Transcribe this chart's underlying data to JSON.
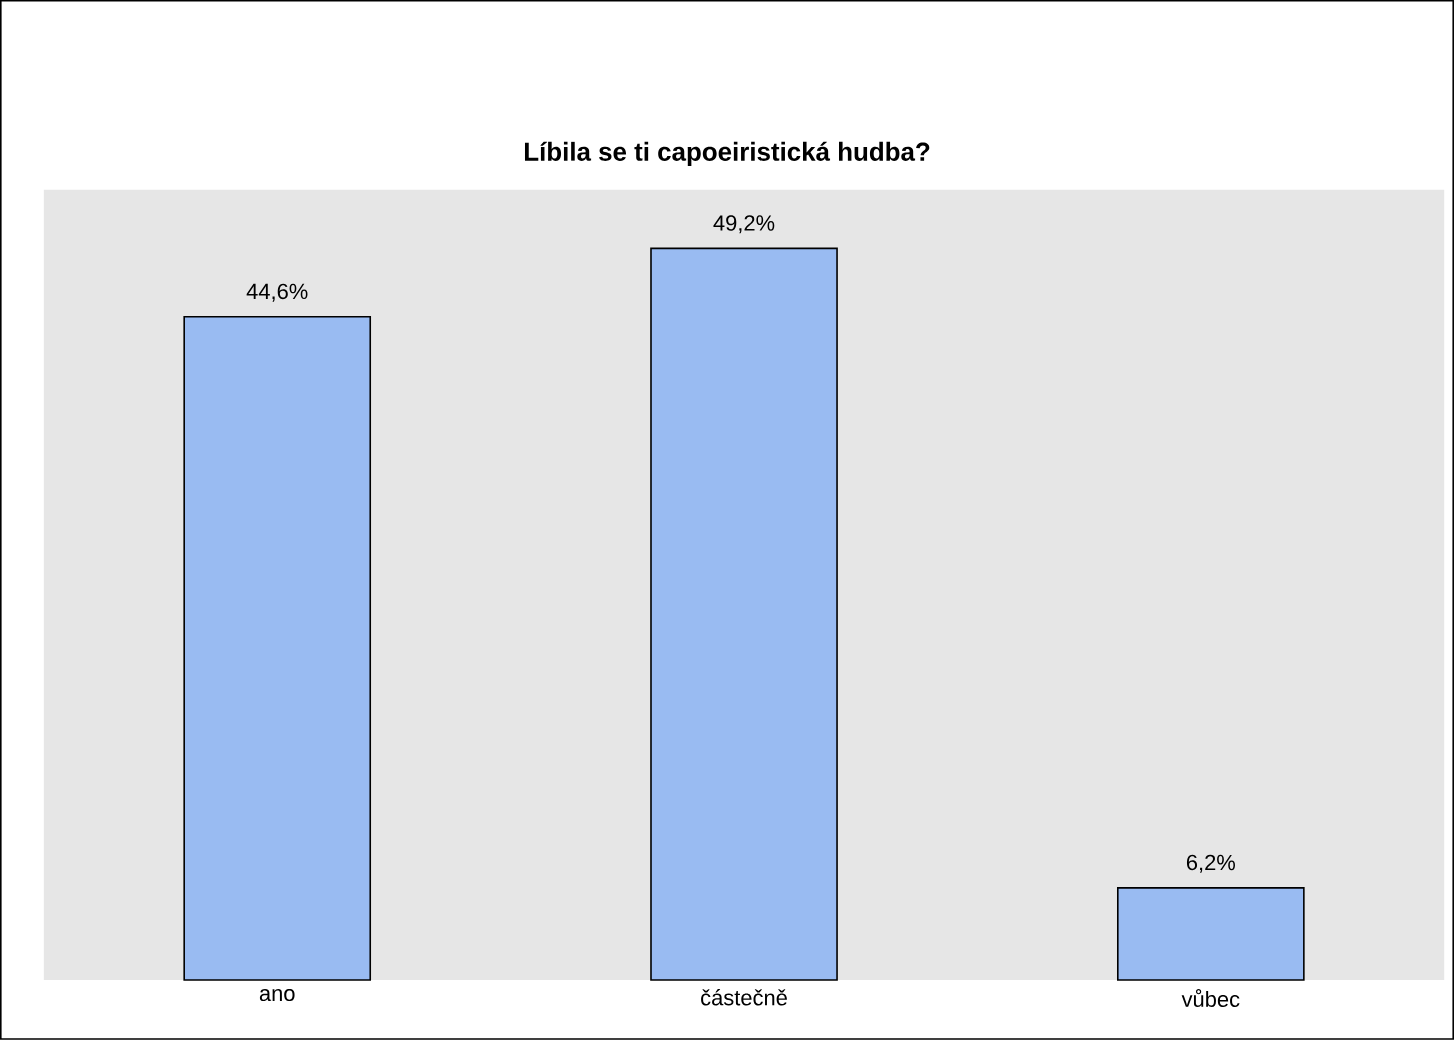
{
  "chart_data": {
    "type": "bar",
    "title": "Líbila se ti capoeiristická hudba?",
    "categories": [
      "ano",
      "částečně",
      "vůbec"
    ],
    "values": [
      44.6,
      49.2,
      6.2
    ],
    "value_labels": [
      "44,6%",
      "49,2%",
      "6,2%"
    ],
    "color": "#99bbf2"
  }
}
